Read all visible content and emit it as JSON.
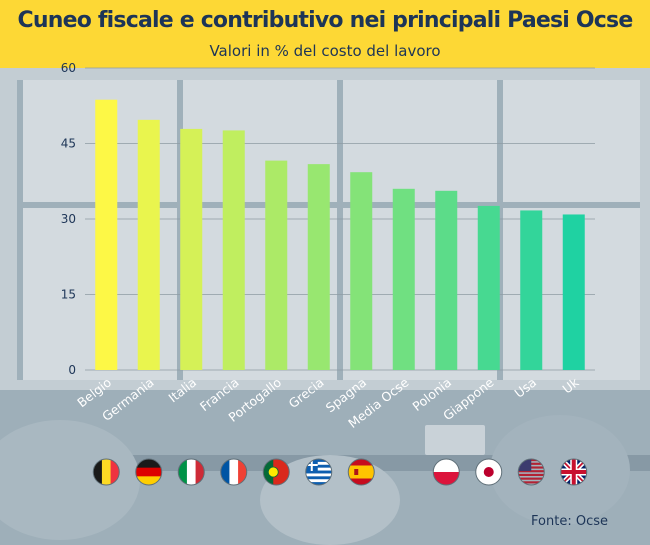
{
  "header": {
    "title": "Cuneo fiscale e contributivo nei principali Paesi Ocse",
    "subtitle": "Valori in % del costo del lavoro"
  },
  "source": "Fonte: Ocse",
  "colors": {
    "header_bg": "#fdd835",
    "title": "#1d3557",
    "bar_start": "#fdf846",
    "bar_end": "#1fd2a2"
  },
  "chart_data": {
    "type": "bar",
    "title": "Cuneo fiscale e contributivo nei principali Paesi Ocse",
    "subtitle": "Valori in % del costo del lavoro",
    "categories": [
      "Belgio",
      "Germania",
      "Italia",
      "Francia",
      "Portogallo",
      "Grecia",
      "Spagna",
      "Media Ocse",
      "Polonia",
      "Giappone",
      "Usa",
      "Uk"
    ],
    "values": [
      53.7,
      49.7,
      47.9,
      47.6,
      41.6,
      40.9,
      39.3,
      36.0,
      35.6,
      32.6,
      31.7,
      30.9
    ],
    "flags": [
      "belgium-flag-icon",
      "germany-flag-icon",
      "italy-flag-icon",
      "france-flag-icon",
      "portugal-flag-icon",
      "greece-flag-icon",
      "spain-flag-icon",
      null,
      "poland-flag-icon",
      "japan-flag-icon",
      "usa-flag-icon",
      "uk-flag-icon"
    ],
    "ylim": [
      0,
      60
    ],
    "yticks": [
      0,
      15,
      30,
      45,
      60
    ],
    "grid": true,
    "xlabel": "",
    "ylabel": ""
  }
}
